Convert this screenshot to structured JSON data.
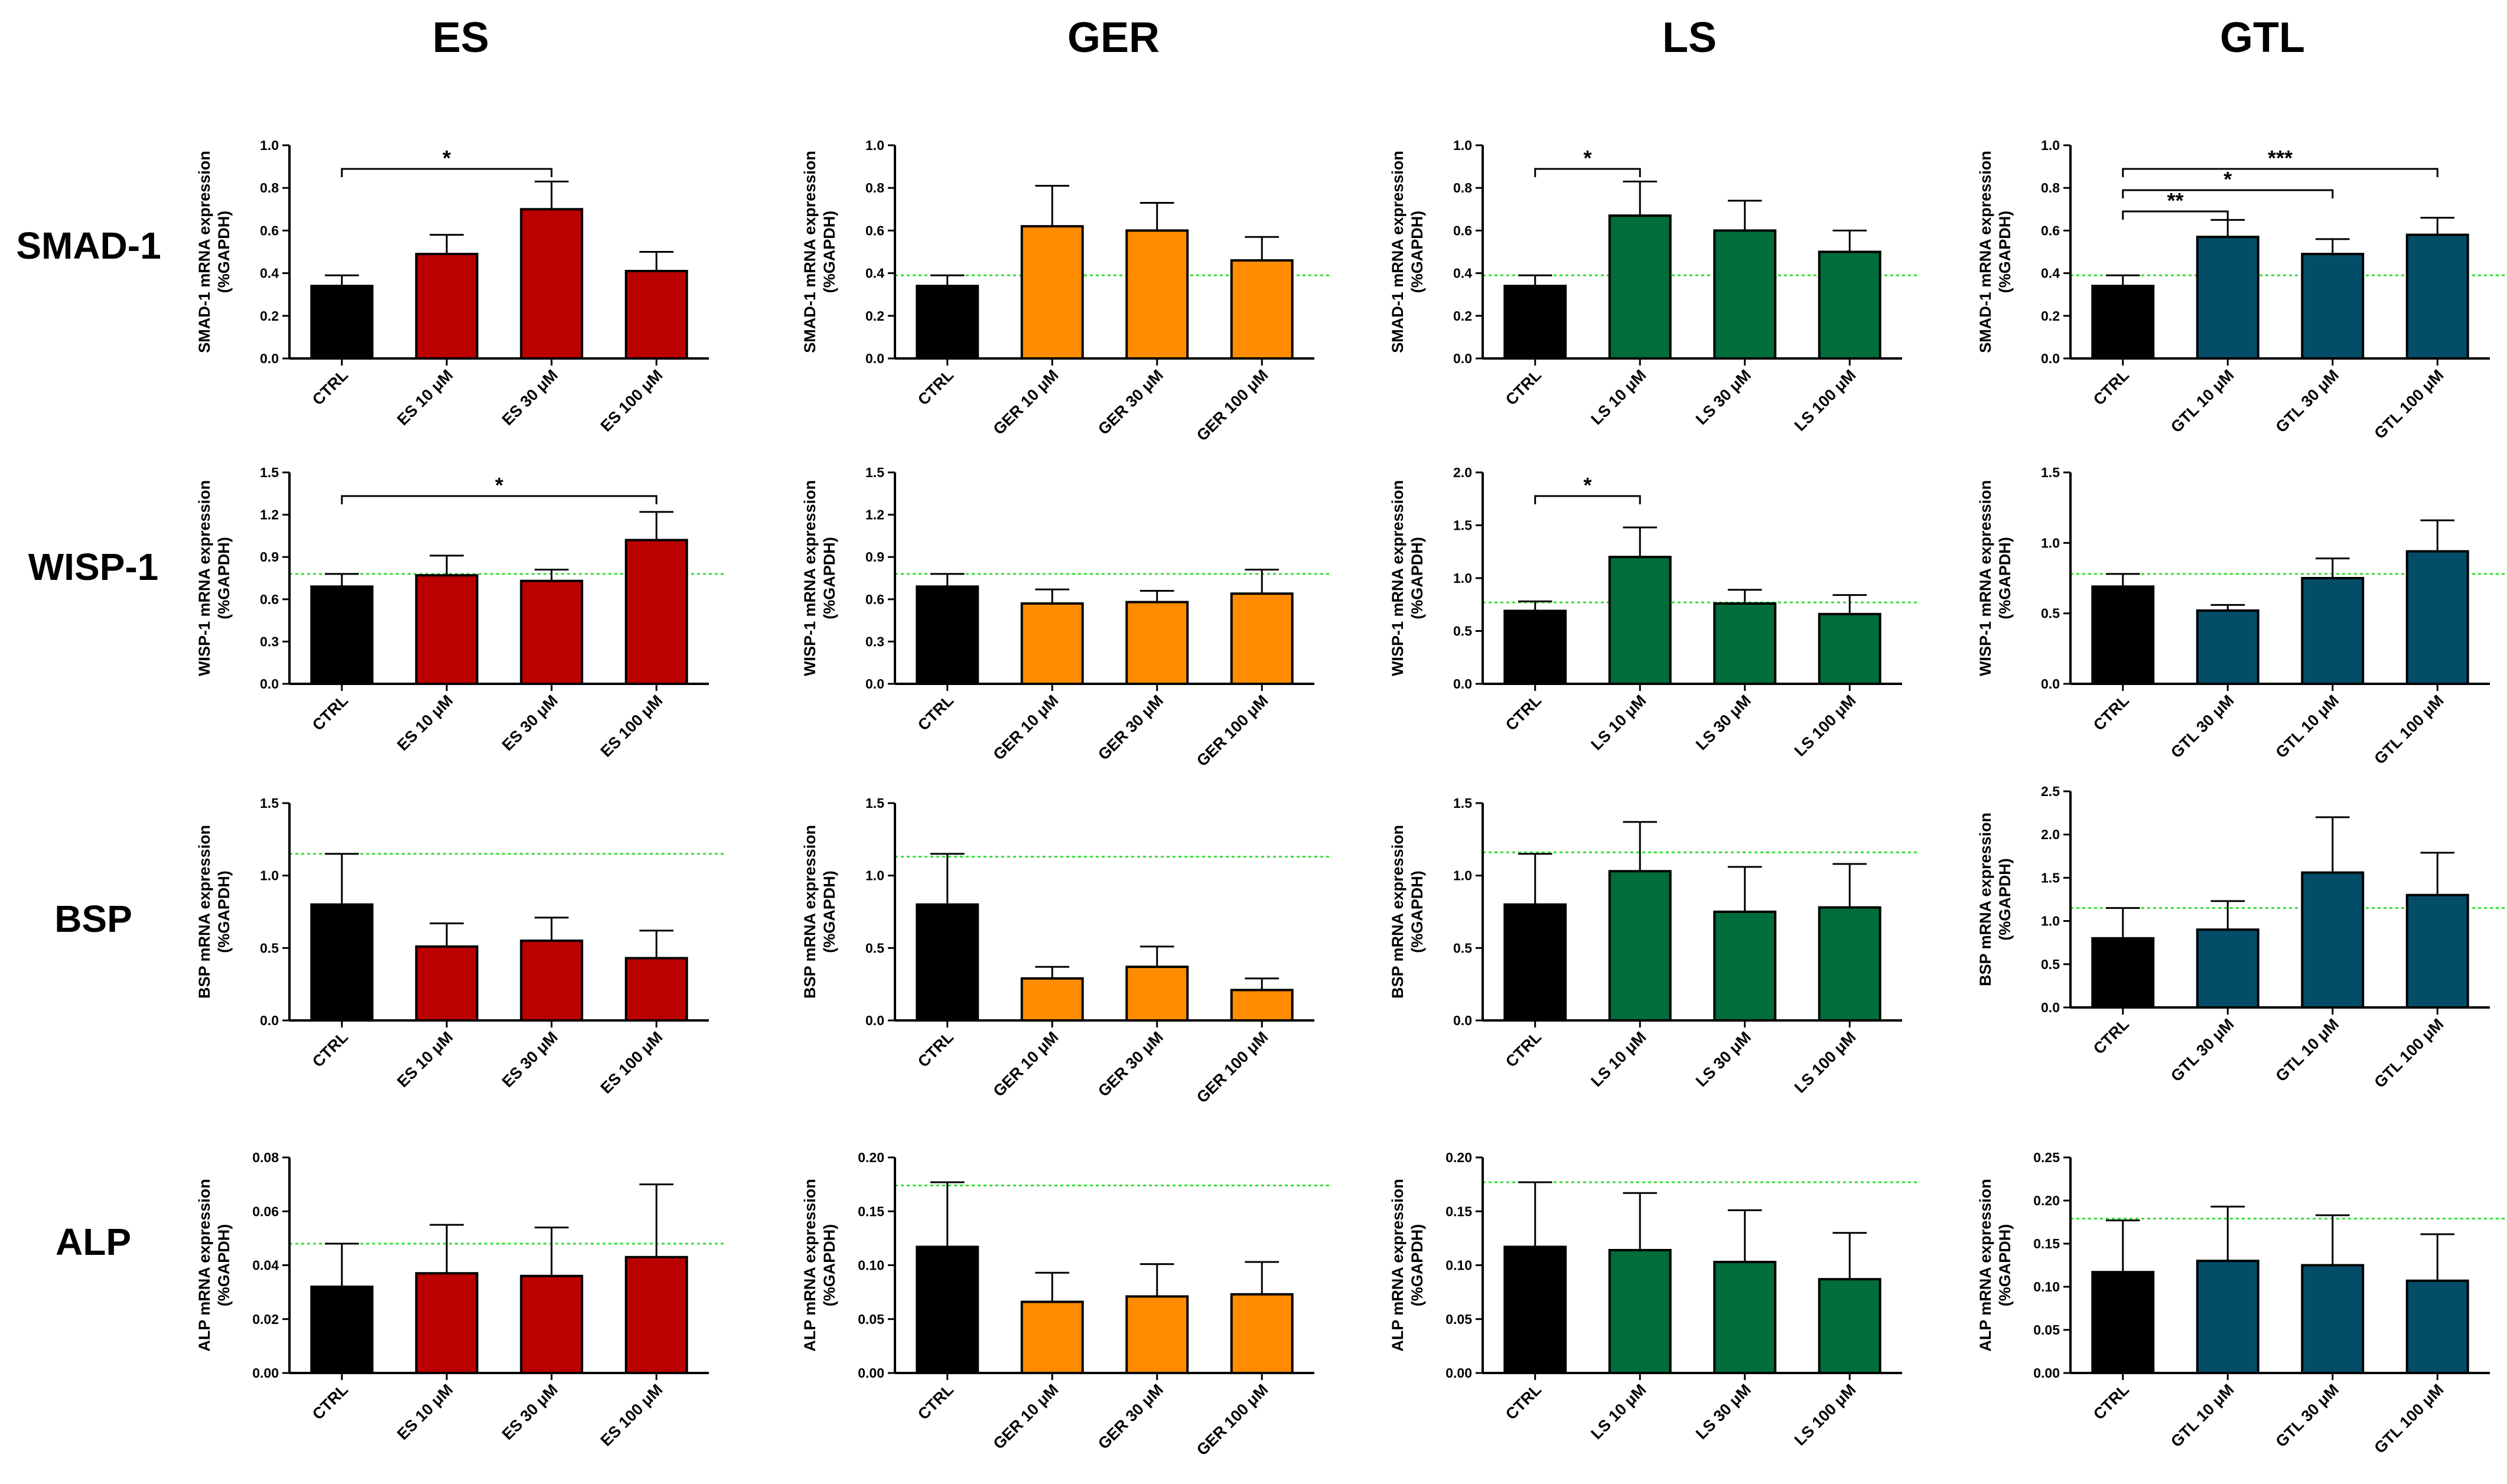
{
  "column_titles": [
    "ES",
    "GER",
    "LS",
    "GTL"
  ],
  "row_titles": [
    "SMAD-1",
    "WISP-1",
    "BSP",
    "ALP"
  ],
  "colors": {
    "ES": "#bb0000",
    "GER": "#ff8c00",
    "LS": "#006d3a",
    "GTL": "#034d68",
    "CTRL": "#000000",
    "reference_line": "#33dd33"
  },
  "chart_data": [
    {
      "type": "bar",
      "row": "SMAD-1",
      "column": "ES",
      "ylabel": [
        "SMAD-1 mRNA expression",
        "(%GAPDH)"
      ],
      "ylim": [
        0,
        1.0
      ],
      "yticks": [
        "0.0",
        "0.2",
        "0.4",
        "0.6",
        "0.8",
        "1.0"
      ],
      "categories": [
        "CTRL",
        "ES 10 μM",
        "ES 30 μM",
        "ES 100 μM"
      ],
      "values": [
        0.34,
        0.49,
        0.7,
        0.41
      ],
      "errors": [
        0.05,
        0.09,
        0.13,
        0.09
      ],
      "reference_line": null,
      "significance": [
        {
          "from": 0,
          "to": 2,
          "label": "*"
        }
      ]
    },
    {
      "type": "bar",
      "row": "SMAD-1",
      "column": "GER",
      "ylabel": [
        "SMAD-1 mRNA expression",
        "(%GAPDH)"
      ],
      "ylim": [
        0,
        1.0
      ],
      "yticks": [
        "0.0",
        "0.2",
        "0.4",
        "0.6",
        "0.8",
        "1.0"
      ],
      "categories": [
        "CTRL",
        "GER 10 μM",
        "GER 30 μM",
        "GER 100 μM"
      ],
      "values": [
        0.34,
        0.62,
        0.6,
        0.46
      ],
      "errors": [
        0.05,
        0.19,
        0.13,
        0.11
      ],
      "reference_line": 0.39,
      "significance": []
    },
    {
      "type": "bar",
      "row": "SMAD-1",
      "column": "LS",
      "ylabel": [
        "SMAD-1 mRNA expression",
        "(%GAPDH)"
      ],
      "ylim": [
        0,
        1.0
      ],
      "yticks": [
        "0.0",
        "0.2",
        "0.4",
        "0.6",
        "0.8",
        "1.0"
      ],
      "categories": [
        "CTRL",
        "LS 10 μM",
        "LS 30 μM",
        "LS 100 μM"
      ],
      "values": [
        0.34,
        0.67,
        0.6,
        0.5
      ],
      "errors": [
        0.05,
        0.16,
        0.14,
        0.1
      ],
      "reference_line": 0.39,
      "significance": [
        {
          "from": 0,
          "to": 1,
          "label": "*"
        }
      ]
    },
    {
      "type": "bar",
      "row": "SMAD-1",
      "column": "GTL",
      "ylabel": [
        "SMAD-1 mRNA expression",
        "(%GAPDH)"
      ],
      "ylim": [
        0,
        1.0
      ],
      "yticks": [
        "0.0",
        "0.2",
        "0.4",
        "0.6",
        "0.8",
        "1.0"
      ],
      "categories": [
        "CTRL",
        "GTL 10 μM",
        "GTL 30 μM",
        "GTL 100 μM"
      ],
      "values": [
        0.34,
        0.57,
        0.49,
        0.58
      ],
      "errors": [
        0.05,
        0.08,
        0.07,
        0.08
      ],
      "reference_line": 0.39,
      "significance": [
        {
          "from": 0,
          "to": 1,
          "label": "**"
        },
        {
          "from": 0,
          "to": 2,
          "label": "*"
        },
        {
          "from": 0,
          "to": 3,
          "label": "***"
        }
      ]
    },
    {
      "type": "bar",
      "row": "WISP-1",
      "column": "ES",
      "ylabel": [
        "WISP-1 mRNA expression",
        "(%GAPDH)"
      ],
      "ylim": [
        0,
        1.5
      ],
      "yticks": [
        "0.0",
        "0.3",
        "0.6",
        "0.9",
        "1.2",
        "1.5"
      ],
      "categories": [
        "CTRL",
        "ES 10 μM",
        "ES 30 μM",
        "ES 100 μM"
      ],
      "values": [
        0.69,
        0.77,
        0.73,
        1.02
      ],
      "errors": [
        0.09,
        0.14,
        0.08,
        0.2
      ],
      "reference_line": 0.78,
      "significance": [
        {
          "from": 0,
          "to": 3,
          "label": "*"
        }
      ]
    },
    {
      "type": "bar",
      "row": "WISP-1",
      "column": "GER",
      "ylabel": [
        "WISP-1 mRNA expression",
        "(%GAPDH)"
      ],
      "ylim": [
        0,
        1.5
      ],
      "yticks": [
        "0.0",
        "0.3",
        "0.6",
        "0.9",
        "1.2",
        "1.5"
      ],
      "categories": [
        "CTRL",
        "GER 10 μM",
        "GER 30 μM",
        "GER 100 μM"
      ],
      "values": [
        0.69,
        0.57,
        0.58,
        0.64
      ],
      "errors": [
        0.09,
        0.1,
        0.08,
        0.17
      ],
      "reference_line": 0.78,
      "significance": []
    },
    {
      "type": "bar",
      "row": "WISP-1",
      "column": "LS",
      "ylabel": [
        "WISP-1 mRNA expression",
        "(%GAPDH)"
      ],
      "ylim": [
        0,
        2.0
      ],
      "yticks": [
        "0.0",
        "0.5",
        "1.0",
        "1.5",
        "2.0"
      ],
      "categories": [
        "CTRL",
        "LS 10 μM",
        "LS 30 μM",
        "LS 100 μM"
      ],
      "values": [
        0.69,
        1.2,
        0.76,
        0.66
      ],
      "errors": [
        0.09,
        0.28,
        0.13,
        0.18
      ],
      "reference_line": 0.77,
      "significance": [
        {
          "from": 0,
          "to": 1,
          "label": "*"
        }
      ]
    },
    {
      "type": "bar",
      "row": "WISP-1",
      "column": "GTL",
      "ylabel": [
        "WISP-1 mRNA expression",
        "(%GAPDH)"
      ],
      "ylim": [
        0,
        1.5
      ],
      "yticks": [
        "0.0",
        "0.5",
        "1.0",
        "1.5"
      ],
      "categories": [
        "CTRL",
        "GTL 30 μM",
        "GTL 10 μM",
        "GTL 100 μM"
      ],
      "values": [
        0.69,
        0.52,
        0.75,
        0.94
      ],
      "errors": [
        0.09,
        0.04,
        0.14,
        0.22
      ],
      "reference_line": 0.78,
      "significance": []
    },
    {
      "type": "bar",
      "row": "BSP",
      "column": "ES",
      "ylabel": [
        "BSP mRNA expression",
        "(%GAPDH)"
      ],
      "ylim": [
        0,
        1.5
      ],
      "yticks": [
        "0.0",
        "0.5",
        "1.0",
        "1.5"
      ],
      "categories": [
        "CTRL",
        "ES 10 μM",
        "ES 30 μM",
        "ES 100 μM"
      ],
      "values": [
        0.8,
        0.51,
        0.55,
        0.43
      ],
      "errors": [
        0.35,
        0.16,
        0.16,
        0.19
      ],
      "reference_line": 1.15,
      "significance": []
    },
    {
      "type": "bar",
      "row": "BSP",
      "column": "GER",
      "ylabel": [
        "BSP mRNA expression",
        "(%GAPDH)"
      ],
      "ylim": [
        0,
        1.5
      ],
      "yticks": [
        "0.0",
        "0.5",
        "1.0",
        "1.5"
      ],
      "categories": [
        "CTRL",
        "GER 10 μM",
        "GER 30 μM",
        "GER 100 μM"
      ],
      "values": [
        0.8,
        0.29,
        0.37,
        0.21
      ],
      "errors": [
        0.35,
        0.08,
        0.14,
        0.08
      ],
      "reference_line": 1.13,
      "significance": []
    },
    {
      "type": "bar",
      "row": "BSP",
      "column": "LS",
      "ylabel": [
        "BSP mRNA expression",
        "(%GAPDH)"
      ],
      "ylim": [
        0,
        1.5
      ],
      "yticks": [
        "0.0",
        "0.5",
        "1.0",
        "1.5"
      ],
      "categories": [
        "CTRL",
        "LS 10 μM",
        "LS 30 μM",
        "LS 100 μM"
      ],
      "values": [
        0.8,
        1.03,
        0.75,
        0.78
      ],
      "errors": [
        0.35,
        0.34,
        0.31,
        0.3
      ],
      "reference_line": 1.16,
      "significance": []
    },
    {
      "type": "bar",
      "row": "BSP",
      "column": "GTL",
      "ylabel": [
        "BSP mRNA expression",
        "(%GAPDH)"
      ],
      "ylim": [
        0,
        2.5
      ],
      "yticks": [
        "0.0",
        "0.5",
        "1.0",
        "1.5",
        "2.0",
        "2.5"
      ],
      "categories": [
        "CTRL",
        "GTL 30 μM",
        "GTL 10 μM",
        "GTL 100 μM"
      ],
      "values": [
        0.8,
        0.9,
        1.56,
        1.3
      ],
      "errors": [
        0.35,
        0.33,
        0.64,
        0.49
      ],
      "reference_line": 1.15,
      "significance": []
    },
    {
      "type": "bar",
      "row": "ALP",
      "column": "ES",
      "ylabel": [
        "ALP mRNA expression",
        "(%GAPDH)"
      ],
      "ylim": [
        0,
        0.08
      ],
      "yticks": [
        "0.00",
        "0.02",
        "0.04",
        "0.06",
        "0.08"
      ],
      "categories": [
        "CTRL",
        "ES 10 μM",
        "ES 30 μM",
        "ES 100 μM"
      ],
      "values": [
        0.032,
        0.037,
        0.036,
        0.043
      ],
      "errors": [
        0.016,
        0.018,
        0.018,
        0.027
      ],
      "reference_line": 0.048,
      "significance": []
    },
    {
      "type": "bar",
      "row": "ALP",
      "column": "GER",
      "ylabel": [
        "ALP mRNA expression",
        "(%GAPDH)"
      ],
      "ylim": [
        0,
        0.2
      ],
      "yticks": [
        "0.00",
        "0.05",
        "0.10",
        "0.15",
        "0.20"
      ],
      "categories": [
        "CTRL",
        "GER 10 μM",
        "GER 30 μM",
        "GER 100 μM"
      ],
      "values": [
        0.117,
        0.066,
        0.071,
        0.073
      ],
      "errors": [
        0.06,
        0.027,
        0.03,
        0.03
      ],
      "reference_line": 0.174,
      "significance": []
    },
    {
      "type": "bar",
      "row": "ALP",
      "column": "LS",
      "ylabel": [
        "ALP mRNA expression",
        "(%GAPDH)"
      ],
      "ylim": [
        0,
        0.2
      ],
      "yticks": [
        "0.00",
        "0.05",
        "0.10",
        "0.15",
        "0.20"
      ],
      "categories": [
        "CTRL",
        "LS 10 μM",
        "LS 30 μM",
        "LS 100 μM"
      ],
      "values": [
        0.117,
        0.114,
        0.103,
        0.087
      ],
      "errors": [
        0.06,
        0.053,
        0.048,
        0.043
      ],
      "reference_line": 0.177,
      "significance": []
    },
    {
      "type": "bar",
      "row": "ALP",
      "column": "GTL",
      "ylabel": [
        "ALP mRNA expression",
        "(%GAPDH)"
      ],
      "ylim": [
        0,
        0.25
      ],
      "yticks": [
        "0.00",
        "0.05",
        "0.10",
        "0.15",
        "0.20",
        "0.25"
      ],
      "categories": [
        "CTRL",
        "GTL 10 μM",
        "GTL 30 μM",
        "GTL 100 μM"
      ],
      "values": [
        0.117,
        0.13,
        0.125,
        0.107
      ],
      "errors": [
        0.06,
        0.063,
        0.058,
        0.054
      ],
      "reference_line": 0.179,
      "significance": []
    }
  ]
}
